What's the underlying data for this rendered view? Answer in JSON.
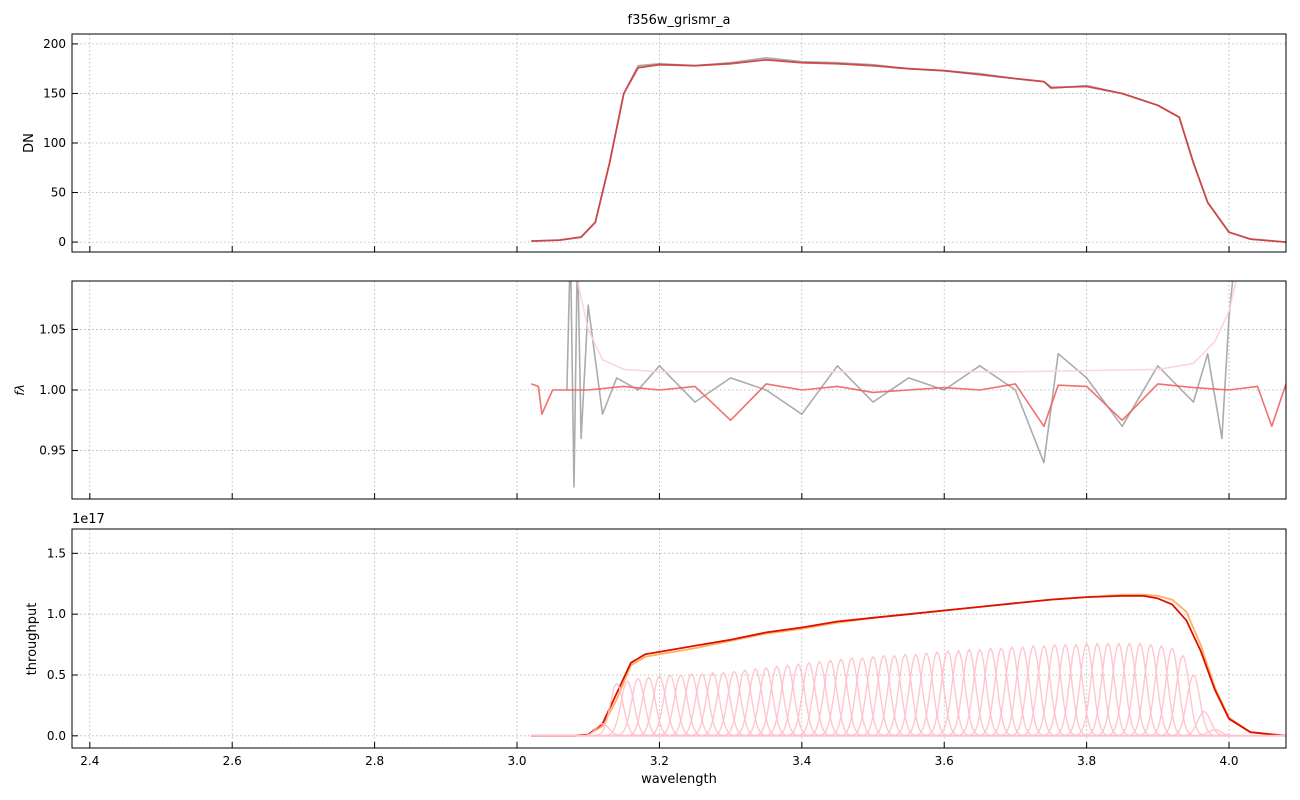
{
  "figure_title": "f356w_grismr_a",
  "x_ticks": [
    "2.4",
    "2.6",
    "2.8",
    "3.0",
    "3.2",
    "3.4",
    "3.6",
    "3.8",
    "4.0"
  ],
  "xlabel": "wavelength",
  "panels": [
    {
      "ylabel": "DN",
      "yticks": [
        "0",
        "50",
        "100",
        "150",
        "200"
      ],
      "offset_text": ""
    },
    {
      "ylabel": "fλ",
      "yticks": [
        "0.95",
        "1.00",
        "1.05"
      ],
      "offset_text": ""
    },
    {
      "ylabel": "throughput",
      "yticks": [
        "0.0",
        "0.5",
        "1.0",
        "1.5"
      ],
      "offset_text": "1e17"
    }
  ],
  "colors": {
    "data_gray": "#808080",
    "model_red": "#cd3c3c",
    "ratio_red": "#f06060",
    "envelope_pink": "#ffd0d8",
    "throughput_red": "#dd1100",
    "throughput_orange": "#ffb060",
    "component_pink": "#ffc0cb"
  },
  "chart_data": [
    {
      "type": "line",
      "title": "f356w_grismr_a",
      "xlabel": "",
      "ylabel": "DN",
      "xlim": [
        2.375,
        4.08
      ],
      "ylim": [
        -10,
        210
      ],
      "grid": true,
      "series": [
        {
          "style": "gray data",
          "x": [
            3.02,
            3.06,
            3.09,
            3.11,
            3.13,
            3.15,
            3.17,
            3.2,
            3.25,
            3.3,
            3.35,
            3.4,
            3.45,
            3.5,
            3.55,
            3.6,
            3.65,
            3.7,
            3.74,
            3.75,
            3.8,
            3.85,
            3.9,
            3.93,
            3.95,
            3.97,
            4.0,
            4.03,
            4.08
          ],
          "y": [
            1,
            2,
            5,
            20,
            80,
            150,
            178,
            180,
            178,
            181,
            186,
            182,
            181,
            179,
            175,
            173,
            170,
            165,
            162,
            155,
            158,
            150,
            138,
            126,
            80,
            40,
            10,
            3,
            0
          ]
        },
        {
          "style": "red model",
          "x": [
            3.02,
            3.06,
            3.09,
            3.11,
            3.13,
            3.15,
            3.17,
            3.2,
            3.25,
            3.3,
            3.35,
            3.4,
            3.45,
            3.5,
            3.55,
            3.6,
            3.65,
            3.7,
            3.74,
            3.75,
            3.8,
            3.85,
            3.9,
            3.93,
            3.95,
            3.97,
            4.0,
            4.03,
            4.08
          ],
          "y": [
            1,
            2,
            5,
            20,
            80,
            150,
            176,
            179,
            178,
            180,
            184,
            181,
            180,
            178,
            175,
            173,
            169,
            165,
            162,
            156,
            157,
            150,
            138,
            126,
            80,
            40,
            10,
            3,
            0
          ]
        }
      ]
    },
    {
      "type": "line",
      "xlabel": "",
      "ylabel": "fλ",
      "xlim": [
        2.375,
        4.08
      ],
      "ylim": [
        0.91,
        1.09
      ],
      "grid": true,
      "series": [
        {
          "style": "gray ratio",
          "x": [
            3.07,
            3.075,
            3.08,
            3.085,
            3.09,
            3.1,
            3.12,
            3.14,
            3.17,
            3.2,
            3.25,
            3.3,
            3.35,
            3.4,
            3.45,
            3.5,
            3.55,
            3.6,
            3.65,
            3.7,
            3.74,
            3.76,
            3.8,
            3.85,
            3.9,
            3.95,
            3.97,
            3.99,
            4.0,
            4.01
          ],
          "y": [
            1.0,
            1.12,
            0.92,
            1.12,
            0.96,
            1.07,
            0.98,
            1.01,
            1.0,
            1.02,
            0.99,
            1.01,
            1.0,
            0.98,
            1.02,
            0.99,
            1.01,
            1.0,
            1.02,
            1.0,
            0.94,
            1.03,
            1.01,
            0.97,
            1.02,
            0.99,
            1.03,
            0.96,
            1.06,
            1.12
          ]
        },
        {
          "style": "red model ratio",
          "x": [
            3.02,
            3.03,
            3.035,
            3.05,
            3.1,
            3.15,
            3.2,
            3.25,
            3.3,
            3.35,
            3.4,
            3.45,
            3.5,
            3.55,
            3.6,
            3.65,
            3.7,
            3.74,
            3.76,
            3.8,
            3.85,
            3.9,
            3.95,
            4.0,
            4.04,
            4.06,
            4.08
          ],
          "y": [
            1.005,
            1.003,
            0.98,
            1.0,
            1.0,
            1.003,
            1.0,
            1.003,
            0.975,
            1.005,
            1.0,
            1.003,
            0.998,
            1.0,
            1.002,
            1.0,
            1.005,
            0.97,
            1.004,
            1.003,
            0.975,
            1.005,
            1.002,
            1.0,
            1.003,
            0.97,
            1.005
          ]
        },
        {
          "style": "pink envelope",
          "x": [
            3.085,
            3.1,
            3.12,
            3.15,
            3.2,
            3.3,
            3.5,
            3.7,
            3.9,
            3.95,
            3.98,
            4.0,
            4.01
          ],
          "y": [
            1.09,
            1.05,
            1.025,
            1.017,
            1.015,
            1.015,
            1.015,
            1.015,
            1.017,
            1.022,
            1.04,
            1.065,
            1.09
          ]
        }
      ]
    },
    {
      "type": "line",
      "xlabel": "wavelength",
      "ylabel": "throughput",
      "y_scale_label": "1e17",
      "xlim": [
        2.375,
        4.08
      ],
      "ylim": [
        -0.1,
        1.7
      ],
      "grid": true,
      "series": [
        {
          "style": "orange throughput",
          "x": [
            3.02,
            3.08,
            3.1,
            3.12,
            3.14,
            3.16,
            3.18,
            3.2,
            3.25,
            3.3,
            3.35,
            3.4,
            3.45,
            3.5,
            3.55,
            3.6,
            3.65,
            3.7,
            3.75,
            3.8,
            3.85,
            3.88,
            3.9,
            3.92,
            3.94,
            3.96,
            3.98,
            4.0,
            4.03,
            4.08
          ],
          "y": [
            0,
            0,
            0.01,
            0.08,
            0.3,
            0.58,
            0.65,
            0.67,
            0.72,
            0.78,
            0.84,
            0.88,
            0.93,
            0.97,
            1.0,
            1.03,
            1.06,
            1.09,
            1.12,
            1.14,
            1.16,
            1.16,
            1.15,
            1.12,
            1.02,
            0.75,
            0.4,
            0.15,
            0.03,
            0
          ]
        },
        {
          "style": "red throughput",
          "x": [
            3.02,
            3.08,
            3.1,
            3.12,
            3.14,
            3.16,
            3.18,
            3.2,
            3.25,
            3.3,
            3.35,
            3.4,
            3.45,
            3.5,
            3.55,
            3.6,
            3.65,
            3.7,
            3.75,
            3.8,
            3.85,
            3.88,
            3.9,
            3.92,
            3.94,
            3.96,
            3.98,
            4.0,
            4.03,
            4.08
          ],
          "y": [
            0,
            0,
            0.01,
            0.1,
            0.35,
            0.6,
            0.67,
            0.69,
            0.74,
            0.79,
            0.85,
            0.89,
            0.94,
            0.97,
            1.0,
            1.03,
            1.06,
            1.09,
            1.12,
            1.14,
            1.15,
            1.15,
            1.13,
            1.08,
            0.95,
            0.7,
            0.38,
            0.14,
            0.03,
            0
          ]
        },
        {
          "style": "pink components",
          "centers": [
            3.12,
            3.14,
            3.155,
            3.17,
            3.185,
            3.2,
            3.215,
            3.23,
            3.245,
            3.26,
            3.275,
            3.29,
            3.305,
            3.32,
            3.335,
            3.35,
            3.365,
            3.38,
            3.395,
            3.41,
            3.425,
            3.44,
            3.455,
            3.47,
            3.485,
            3.5,
            3.515,
            3.53,
            3.545,
            3.56,
            3.575,
            3.59,
            3.605,
            3.62,
            3.635,
            3.65,
            3.665,
            3.68,
            3.695,
            3.71,
            3.725,
            3.74,
            3.755,
            3.77,
            3.785,
            3.8,
            3.815,
            3.83,
            3.845,
            3.86,
            3.875,
            3.89,
            3.905,
            3.92,
            3.935,
            3.95,
            3.965,
            3.98
          ],
          "peaks": [
            0.1,
            0.43,
            0.45,
            0.47,
            0.48,
            0.49,
            0.5,
            0.5,
            0.51,
            0.51,
            0.52,
            0.52,
            0.53,
            0.54,
            0.55,
            0.56,
            0.57,
            0.58,
            0.59,
            0.6,
            0.61,
            0.62,
            0.63,
            0.64,
            0.64,
            0.65,
            0.66,
            0.66,
            0.67,
            0.67,
            0.68,
            0.69,
            0.7,
            0.7,
            0.71,
            0.71,
            0.72,
            0.72,
            0.73,
            0.73,
            0.74,
            0.74,
            0.75,
            0.75,
            0.75,
            0.76,
            0.76,
            0.76,
            0.76,
            0.76,
            0.76,
            0.75,
            0.74,
            0.72,
            0.66,
            0.5,
            0.2,
            0.05
          ]
        }
      ]
    }
  ]
}
